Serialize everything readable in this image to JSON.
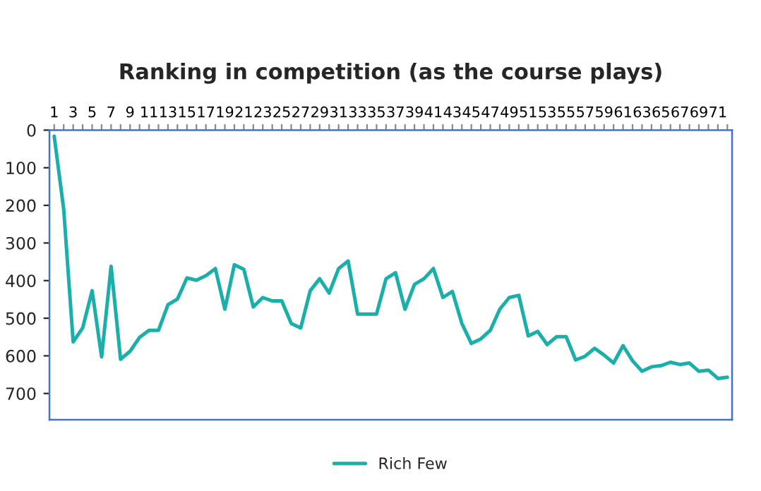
{
  "chart_data": {
    "type": "line",
    "title": "Ranking in competition (as the course plays)",
    "categories": [
      "1",
      null,
      "3",
      null,
      "5",
      null,
      "7",
      null,
      "9",
      null,
      "11",
      null,
      "13",
      null,
      "15",
      null,
      "17",
      null,
      "19",
      null,
      "21",
      null,
      "23",
      null,
      "25",
      null,
      "27",
      null,
      "29",
      null,
      "31",
      null,
      "33",
      null,
      "35",
      null,
      "37",
      null,
      "39",
      null,
      "41",
      null,
      "43",
      null,
      "45",
      null,
      "47",
      null,
      "49",
      null,
      "51",
      null,
      "53",
      null,
      "55",
      null,
      "57",
      null,
      "59",
      null,
      "61",
      null,
      "63",
      null,
      "65",
      null,
      "67",
      null,
      "69",
      null,
      "71",
      null
    ],
    "series": [
      {
        "name": "Rich Few",
        "color": "#1aafaa",
        "values": [
          16,
          210,
          563,
          526,
          427,
          603,
          362,
          609,
          588,
          551,
          532,
          532,
          464,
          449,
          393,
          399,
          387,
          368,
          476,
          358,
          370,
          470,
          445,
          454,
          454,
          514,
          526,
          427,
          395,
          433,
          368,
          348,
          489,
          489,
          489,
          395,
          379,
          476,
          410,
          395,
          368,
          445,
          429,
          514,
          567,
          555,
          532,
          476,
          445,
          439,
          547,
          535,
          570,
          549,
          549,
          611,
          601,
          580,
          598,
          619,
          573,
          613,
          641,
          629,
          626,
          617,
          623,
          619,
          641,
          638,
          660,
          657
        ]
      }
    ],
    "ylim": [
      770,
      0
    ],
    "yticks": [
      0,
      100,
      200,
      300,
      400,
      500,
      600,
      700
    ],
    "grid": false,
    "legend": "bottom",
    "marker": "none",
    "line_style": "solid"
  }
}
